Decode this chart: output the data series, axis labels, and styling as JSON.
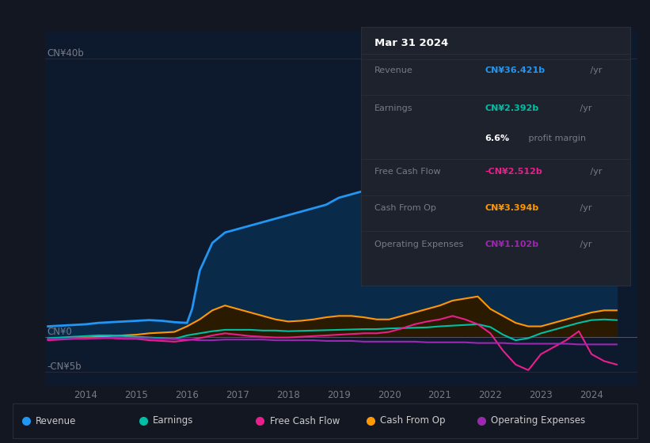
{
  "bg_color": "#131722",
  "chart_bg": "#131722",
  "plot_bg": "#0d1a2e",
  "title": "Mar 31 2024",
  "ylim": [
    -7,
    44
  ],
  "xlim": [
    2013.2,
    2024.9
  ],
  "xticks": [
    2014,
    2015,
    2016,
    2017,
    2018,
    2019,
    2020,
    2021,
    2022,
    2023,
    2024
  ],
  "ylabel_top": "CN¥40b",
  "ylabel_zero": "CN¥0",
  "ylabel_neg": "-CN¥5b",
  "ytick_vals": [
    40,
    0,
    -5
  ],
  "legend_items": [
    {
      "label": "Revenue",
      "color": "#2196f3"
    },
    {
      "label": "Earnings",
      "color": "#00bfa5"
    },
    {
      "label": "Free Cash Flow",
      "color": "#e91e8c"
    },
    {
      "label": "Cash From Op",
      "color": "#ff9800"
    },
    {
      "label": "Operating Expenses",
      "color": "#9c27b0"
    }
  ],
  "tooltip": {
    "title": "Mar 31 2024",
    "title_color": "#ffffff",
    "bg": "#1e222d",
    "border": "#2a2e39",
    "rows": [
      {
        "label": "Revenue",
        "value": "CN¥36.421b",
        "suffix": " /yr",
        "color": "#2196f3",
        "label_color": "#787b86"
      },
      {
        "label": "Earnings",
        "value": "CN¥2.392b",
        "suffix": " /yr",
        "color": "#00bfa5",
        "label_color": "#787b86"
      },
      {
        "label": "",
        "value": "6.6%",
        "suffix": " profit margin",
        "color": "#ffffff",
        "label_color": "#787b86",
        "suffix_color": "#787b86"
      },
      {
        "label": "Free Cash Flow",
        "value": "-CN¥2.512b",
        "suffix": " /yr",
        "color": "#e91e8c",
        "label_color": "#787b86"
      },
      {
        "label": "Cash From Op",
        "value": "CN¥3.394b",
        "suffix": " /yr",
        "color": "#ff9800",
        "label_color": "#787b86"
      },
      {
        "label": "Operating Expenses",
        "value": "CN¥1.102b",
        "suffix": " /yr",
        "color": "#9c27b0",
        "label_color": "#787b86"
      }
    ]
  },
  "revenue": {
    "x": [
      2013.25,
      2013.5,
      2013.75,
      2014.0,
      2014.25,
      2014.5,
      2014.75,
      2015.0,
      2015.25,
      2015.5,
      2015.75,
      2016.0,
      2016.1,
      2016.25,
      2016.5,
      2016.75,
      2017.0,
      2017.25,
      2017.5,
      2017.75,
      2018.0,
      2018.25,
      2018.5,
      2018.75,
      2019.0,
      2019.25,
      2019.5,
      2019.75,
      2020.0,
      2020.25,
      2020.5,
      2020.75,
      2021.0,
      2021.25,
      2021.5,
      2021.75,
      2022.0,
      2022.25,
      2022.5,
      2022.75,
      2023.0,
      2023.25,
      2023.5,
      2023.75,
      2024.0,
      2024.25,
      2024.5
    ],
    "y": [
      1.5,
      1.6,
      1.7,
      1.8,
      2.0,
      2.1,
      2.2,
      2.3,
      2.4,
      2.3,
      2.1,
      2.0,
      4.0,
      9.5,
      13.5,
      15.0,
      15.5,
      16.0,
      16.5,
      17.0,
      17.5,
      18.0,
      18.5,
      19.0,
      20.0,
      20.5,
      21.0,
      21.0,
      21.5,
      22.0,
      22.5,
      22.5,
      23.0,
      25.0,
      27.0,
      28.5,
      30.0,
      28.5,
      27.0,
      26.0,
      27.0,
      28.5,
      30.5,
      33.5,
      36.5,
      38.5,
      40.0
    ],
    "color": "#2196f3",
    "fill_color": "#0a2a4a",
    "linewidth": 2.0
  },
  "earnings": {
    "x": [
      2013.25,
      2013.5,
      2013.75,
      2014.0,
      2014.25,
      2014.5,
      2014.75,
      2015.0,
      2015.25,
      2015.5,
      2015.75,
      2016.0,
      2016.25,
      2016.5,
      2016.75,
      2017.0,
      2017.25,
      2017.5,
      2017.75,
      2018.0,
      2018.25,
      2018.5,
      2018.75,
      2019.0,
      2019.25,
      2019.5,
      2019.75,
      2020.0,
      2020.25,
      2020.5,
      2020.75,
      2021.0,
      2021.25,
      2021.5,
      2021.75,
      2022.0,
      2022.25,
      2022.5,
      2022.75,
      2023.0,
      2023.25,
      2023.5,
      2023.75,
      2024.0,
      2024.25,
      2024.5
    ],
    "y": [
      -0.2,
      -0.1,
      0.0,
      0.1,
      0.2,
      0.2,
      0.1,
      0.0,
      -0.1,
      -0.2,
      -0.3,
      0.2,
      0.5,
      0.8,
      1.0,
      1.0,
      1.0,
      0.9,
      0.9,
      0.8,
      0.85,
      0.9,
      0.95,
      1.0,
      1.05,
      1.1,
      1.1,
      1.2,
      1.25,
      1.3,
      1.35,
      1.5,
      1.6,
      1.7,
      1.8,
      1.4,
      0.3,
      -0.5,
      -0.2,
      0.5,
      1.0,
      1.5,
      2.0,
      2.4,
      2.5,
      2.4
    ],
    "color": "#00bfa5",
    "linewidth": 1.5
  },
  "free_cash_flow": {
    "x": [
      2013.25,
      2013.5,
      2013.75,
      2014.0,
      2014.25,
      2014.5,
      2014.75,
      2015.0,
      2015.25,
      2015.5,
      2015.75,
      2016.0,
      2016.25,
      2016.5,
      2016.75,
      2017.0,
      2017.25,
      2017.5,
      2017.75,
      2018.0,
      2018.25,
      2018.5,
      2018.75,
      2019.0,
      2019.25,
      2019.5,
      2019.75,
      2020.0,
      2020.25,
      2020.5,
      2020.75,
      2021.0,
      2021.25,
      2021.5,
      2021.75,
      2022.0,
      2022.25,
      2022.5,
      2022.75,
      2023.0,
      2023.25,
      2023.5,
      2023.75,
      2024.0,
      2024.25,
      2024.5
    ],
    "y": [
      -0.5,
      -0.4,
      -0.3,
      -0.3,
      -0.2,
      -0.2,
      -0.3,
      -0.3,
      -0.5,
      -0.6,
      -0.7,
      -0.5,
      -0.2,
      0.2,
      0.5,
      0.3,
      0.1,
      0.0,
      -0.1,
      -0.1,
      0.0,
      0.1,
      0.2,
      0.3,
      0.4,
      0.5,
      0.5,
      0.7,
      1.2,
      1.8,
      2.2,
      2.5,
      3.0,
      2.5,
      1.8,
      0.5,
      -2.0,
      -4.0,
      -4.8,
      -2.5,
      -1.5,
      -0.5,
      0.8,
      -2.5,
      -3.5,
      -4.0
    ],
    "color": "#e91e8c",
    "linewidth": 1.5
  },
  "cash_from_op": {
    "x": [
      2013.25,
      2013.5,
      2013.75,
      2014.0,
      2014.25,
      2014.5,
      2014.75,
      2015.0,
      2015.25,
      2015.5,
      2015.75,
      2016.0,
      2016.25,
      2016.5,
      2016.75,
      2017.0,
      2017.25,
      2017.5,
      2017.75,
      2018.0,
      2018.25,
      2018.5,
      2018.75,
      2019.0,
      2019.25,
      2019.5,
      2019.75,
      2020.0,
      2020.25,
      2020.5,
      2020.75,
      2021.0,
      2021.25,
      2021.5,
      2021.75,
      2022.0,
      2022.25,
      2022.5,
      2022.75,
      2023.0,
      2023.25,
      2023.5,
      2023.75,
      2024.0,
      2024.25,
      2024.5
    ],
    "y": [
      -0.4,
      -0.3,
      -0.2,
      -0.1,
      0.0,
      0.1,
      0.2,
      0.3,
      0.5,
      0.6,
      0.7,
      1.5,
      2.5,
      3.8,
      4.5,
      4.0,
      3.5,
      3.0,
      2.5,
      2.2,
      2.3,
      2.5,
      2.8,
      3.0,
      3.0,
      2.8,
      2.5,
      2.5,
      3.0,
      3.5,
      4.0,
      4.5,
      5.2,
      5.5,
      5.8,
      4.0,
      3.0,
      2.0,
      1.5,
      1.5,
      2.0,
      2.5,
      3.0,
      3.5,
      3.8,
      3.8
    ],
    "color": "#ff9800",
    "fill_color": "#2a1a00",
    "linewidth": 1.5
  },
  "operating_expenses": {
    "x": [
      2013.25,
      2013.5,
      2013.75,
      2014.0,
      2014.25,
      2014.5,
      2014.75,
      2015.0,
      2015.25,
      2015.5,
      2015.75,
      2016.0,
      2016.25,
      2016.5,
      2016.75,
      2017.0,
      2017.25,
      2017.5,
      2017.75,
      2018.0,
      2018.25,
      2018.5,
      2018.75,
      2019.0,
      2019.25,
      2019.5,
      2019.75,
      2020.0,
      2020.25,
      2020.5,
      2020.75,
      2021.0,
      2021.25,
      2021.5,
      2021.75,
      2022.0,
      2022.25,
      2022.5,
      2022.75,
      2023.0,
      2023.25,
      2023.5,
      2023.75,
      2024.0,
      2024.25,
      2024.5
    ],
    "y": [
      -0.3,
      -0.3,
      -0.2,
      -0.2,
      -0.2,
      -0.1,
      -0.2,
      -0.2,
      -0.2,
      -0.3,
      -0.3,
      -0.4,
      -0.5,
      -0.5,
      -0.4,
      -0.4,
      -0.4,
      -0.4,
      -0.5,
      -0.5,
      -0.5,
      -0.5,
      -0.6,
      -0.6,
      -0.6,
      -0.7,
      -0.7,
      -0.7,
      -0.7,
      -0.7,
      -0.8,
      -0.8,
      -0.8,
      -0.8,
      -0.9,
      -0.9,
      -0.9,
      -1.0,
      -1.0,
      -1.0,
      -1.0,
      -1.0,
      -1.1,
      -1.1,
      -1.1,
      -1.1
    ],
    "color": "#9c27b0",
    "linewidth": 1.5
  }
}
